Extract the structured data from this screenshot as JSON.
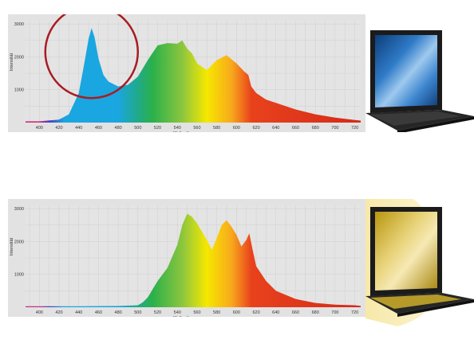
{
  "chart_data": [
    {
      "type": "area",
      "xlabel": "Wellenlänge",
      "ylabel": "Intensität",
      "xlim": [
        386,
        726
      ],
      "ylim": [
        0,
        3100
      ],
      "xticks": [
        400,
        420,
        440,
        460,
        480,
        500,
        520,
        540,
        560,
        580,
        600,
        620,
        640,
        660,
        680,
        700,
        720
      ],
      "yticks": [
        1000,
        2000,
        3000
      ],
      "x": [
        386,
        400,
        420,
        430,
        440,
        445,
        450,
        453,
        456,
        460,
        465,
        470,
        480,
        490,
        500,
        510,
        520,
        530,
        540,
        545,
        550,
        555,
        560,
        570,
        580,
        590,
        600,
        608,
        612,
        615,
        620,
        630,
        640,
        660,
        680,
        700,
        720,
        726
      ],
      "values": [
        40,
        40,
        90,
        250,
        900,
        1700,
        2550,
        2880,
        2600,
        1950,
        1450,
        1250,
        1100,
        1150,
        1400,
        1900,
        2350,
        2420,
        2400,
        2500,
        2250,
        2100,
        1800,
        1600,
        1900,
        2050,
        1800,
        1550,
        1450,
        1100,
        900,
        700,
        600,
        400,
        250,
        150,
        80,
        60
      ],
      "annotation": "red circle highlighting blue peak near 453 nm",
      "colors": [
        "#cc2e80",
        "#1aa6e0",
        "#2bb04a",
        "#8cc63e",
        "#f6e800",
        "#f8a81c",
        "#e8421c",
        "#d42a1a"
      ]
    },
    {
      "type": "area",
      "xlabel": "Wellenlänge",
      "ylabel": "Intensität",
      "xlim": [
        386,
        726
      ],
      "ylim": [
        0,
        3100
      ],
      "xticks": [
        400,
        420,
        440,
        460,
        480,
        500,
        520,
        540,
        560,
        580,
        600,
        620,
        640,
        660,
        680,
        700,
        720
      ],
      "yticks": [
        1000,
        2000,
        3000
      ],
      "x": [
        386,
        400,
        440,
        480,
        500,
        505,
        510,
        515,
        520,
        530,
        540,
        545,
        550,
        555,
        560,
        565,
        570,
        575,
        580,
        585,
        590,
        595,
        600,
        605,
        610,
        613,
        616,
        620,
        630,
        640,
        660,
        680,
        700,
        720,
        726
      ],
      "values": [
        30,
        30,
        30,
        40,
        60,
        150,
        300,
        550,
        800,
        1200,
        1900,
        2500,
        2850,
        2750,
        2550,
        2300,
        2050,
        1750,
        2100,
        2500,
        2650,
        2450,
        2200,
        1850,
        2050,
        2250,
        1800,
        1250,
        800,
        500,
        250,
        130,
        80,
        60,
        40
      ],
      "colors": [
        "#cc2e80",
        "#1aa6e0",
        "#2bb04a",
        "#8cc63e",
        "#f6e800",
        "#f8a81c",
        "#e8421c",
        "#d42a1a"
      ]
    }
  ]
}
